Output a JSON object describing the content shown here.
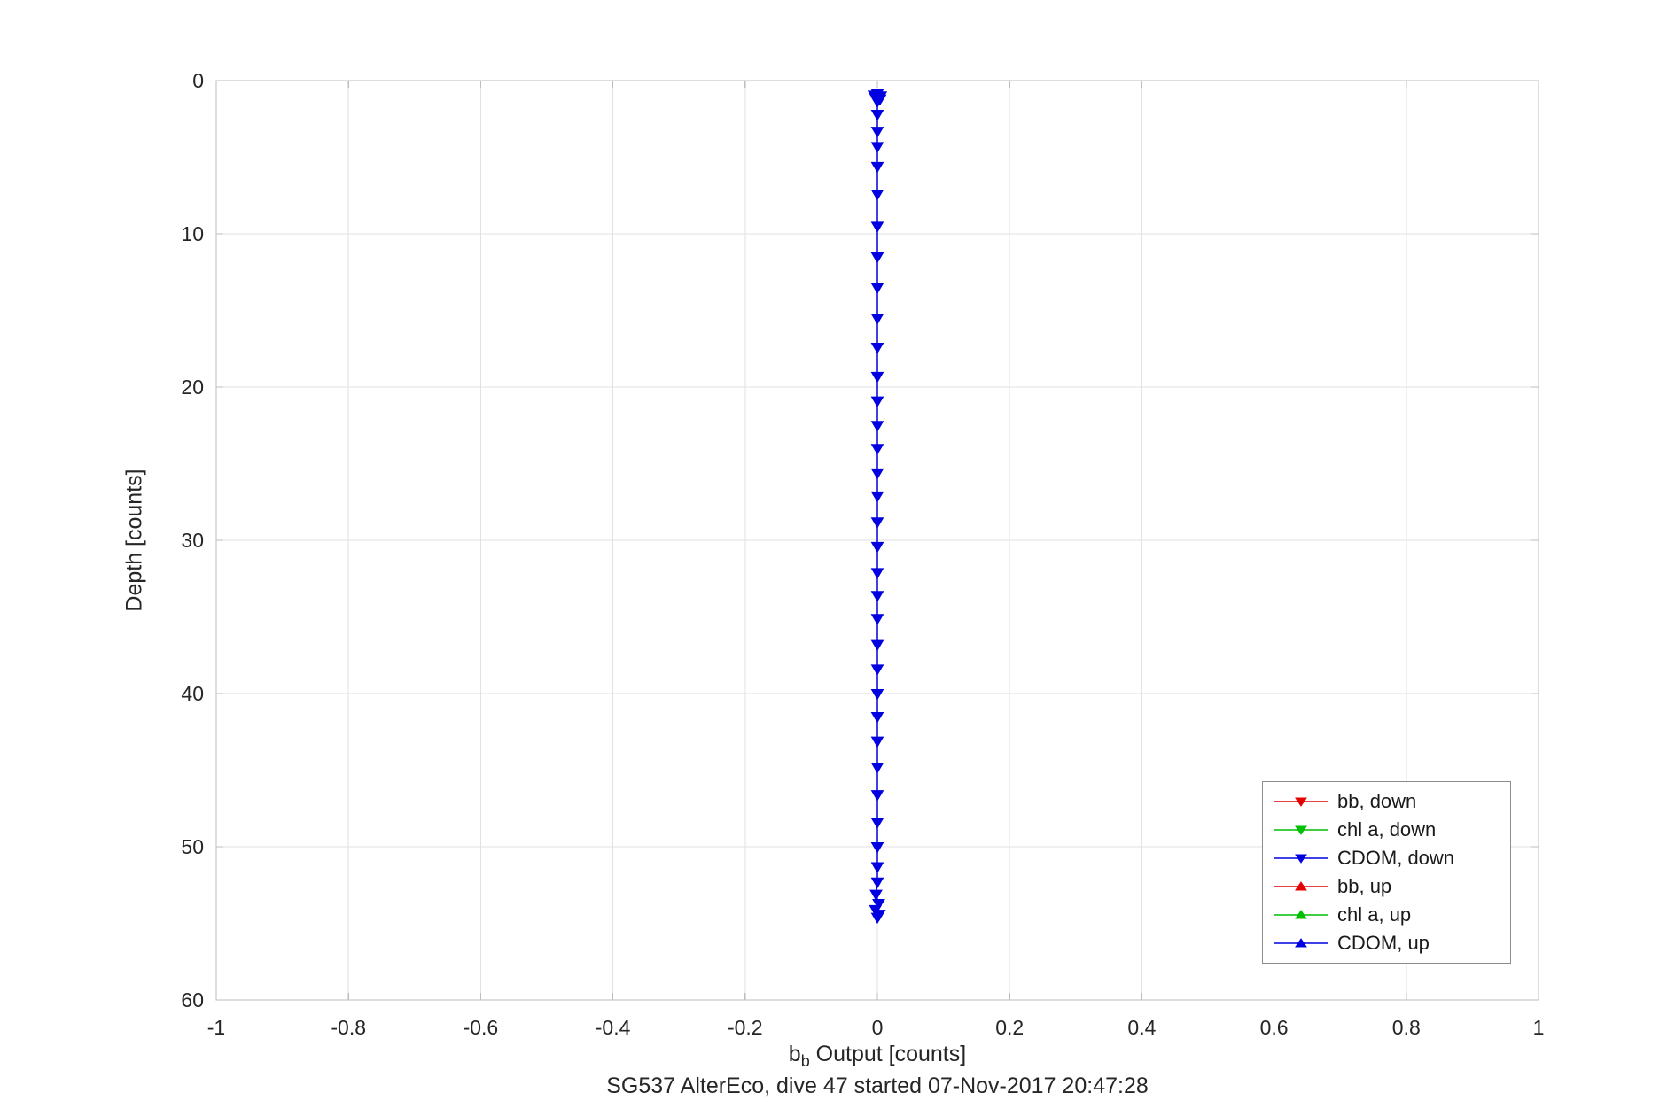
{
  "figure": {
    "background": "#ffffff"
  },
  "colors": {
    "grid": "#e2e2e2",
    "axis_box": "#bdbdbd",
    "tick_text": "#262626",
    "label_text": "#262626",
    "legend_border": "#8c8c8c",
    "series_red": "#e60000",
    "series_green": "#00bf00",
    "series_blue": "#0000e0"
  },
  "chart_data": {
    "type": "scatter",
    "title": "SG537 AlterEco, dive 47 started 07-Nov-2017 20:47:28",
    "xlabel": {
      "base": "b",
      "subscript": "b",
      "rest": " Output [counts]"
    },
    "ylabel": "Depth [counts]",
    "xlim": [
      -1,
      1
    ],
    "ylim": [
      0,
      60
    ],
    "y_axis_direction": "reversed",
    "grid": true,
    "x_ticks": [
      -1,
      -0.8,
      -0.6,
      -0.4,
      -0.2,
      0,
      0.2,
      0.4,
      0.6,
      0.8,
      1
    ],
    "x_tick_labels": [
      "-1",
      "-0.8",
      "-0.6",
      "-0.4",
      "-0.2",
      "0",
      "0.2",
      "0.4",
      "0.6",
      "0.8",
      "1"
    ],
    "y_ticks": [
      0,
      10,
      20,
      30,
      40,
      50,
      60
    ],
    "y_tick_labels": [
      "0",
      "10",
      "20",
      "30",
      "40",
      "50",
      "60"
    ],
    "legend_position": "lower right",
    "series": [
      {
        "name": "bb, down",
        "color": "#e60000",
        "marker": "triangle-down",
        "x": [],
        "depth": []
      },
      {
        "name": "chl a, down",
        "color": "#00bf00",
        "marker": "triangle-down",
        "x": [],
        "depth": []
      },
      {
        "name": "CDOM, down",
        "color": "#0000e0",
        "marker": "triangle-down",
        "x": [
          0.0,
          -0.005,
          0.005,
          -0.003,
          0.004,
          0.0,
          0.0,
          0.0,
          0.0,
          0.0,
          0.0,
          0.0,
          0.0,
          0.0,
          0.0,
          0.0,
          0.0,
          0.0,
          0.0,
          0.0,
          0.0,
          0.0,
          0.0,
          0.0,
          0.0,
          0.0,
          0.0,
          0.0,
          0.0,
          0.0,
          0.0,
          0.0,
          0.0,
          0.0,
          0.0,
          0.0,
          0.0,
          0.0,
          -0.002,
          0.002,
          -0.003,
          0.003,
          0.0
        ],
        "depth": [
          0.85,
          0.95,
          1.0,
          1.1,
          1.2,
          1.35,
          2.2,
          3.3,
          4.3,
          5.6,
          7.4,
          9.5,
          11.5,
          13.5,
          15.5,
          17.4,
          19.3,
          20.9,
          22.5,
          24.0,
          25.6,
          27.1,
          28.8,
          30.4,
          32.1,
          33.6,
          35.1,
          36.8,
          38.4,
          40.0,
          41.5,
          43.1,
          44.8,
          46.6,
          48.4,
          50.0,
          51.3,
          52.3,
          53.1,
          53.7,
          54.1,
          54.4,
          54.6
        ]
      },
      {
        "name": "bb, up",
        "color": "#e60000",
        "marker": "triangle-up",
        "x": [],
        "depth": []
      },
      {
        "name": "chl a, up",
        "color": "#00bf00",
        "marker": "triangle-up",
        "x": [],
        "depth": []
      },
      {
        "name": "CDOM, up",
        "color": "#0000e0",
        "marker": "triangle-up",
        "x": [],
        "depth": []
      }
    ]
  }
}
